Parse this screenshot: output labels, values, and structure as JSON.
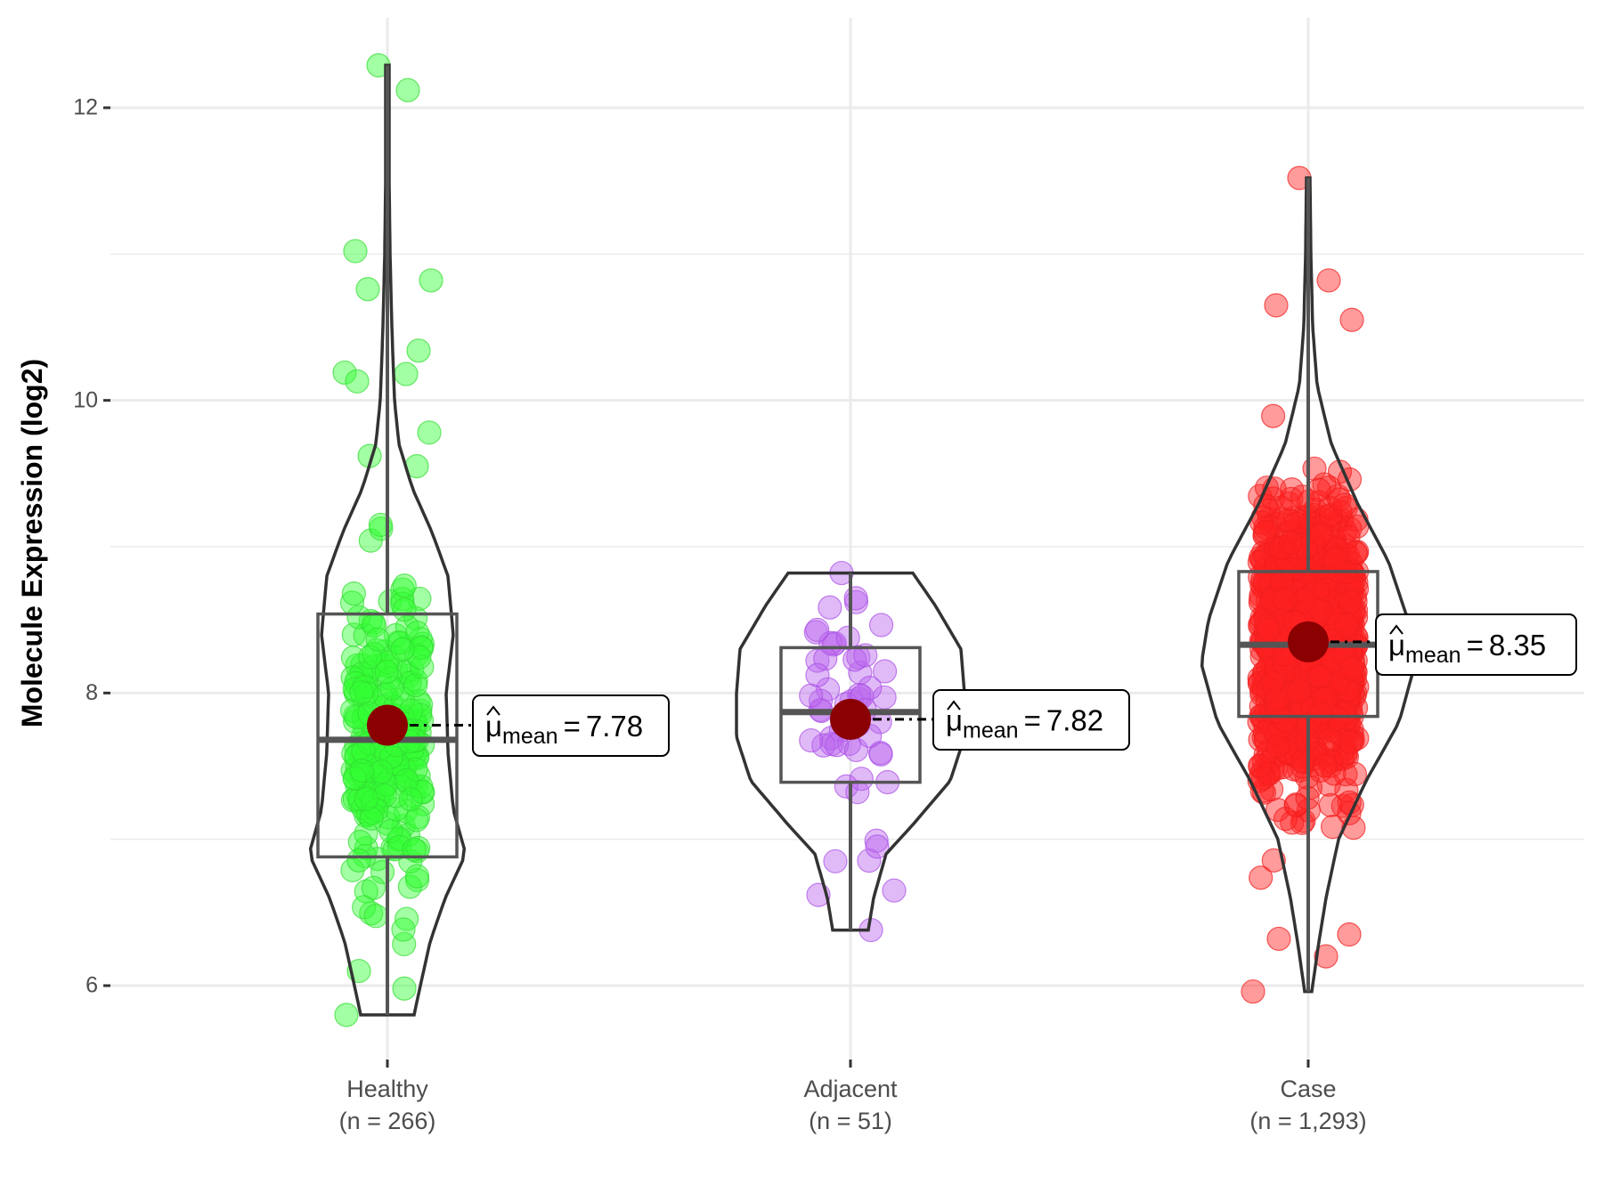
{
  "chart_data": {
    "type": "violin",
    "title": "",
    "xlabel": "",
    "ylabel": "Molecule Expression (log2)",
    "ylim": [
      5.45,
      12.6
    ],
    "yticks": [
      6,
      8,
      10,
      12
    ],
    "ytick_labels": [
      "6",
      "8",
      "10",
      "12"
    ],
    "minor_yticks": [
      7,
      9,
      11
    ],
    "grid": true,
    "legend": "none",
    "groups": [
      {
        "name": "Healthy",
        "n_label": "(n = 266)",
        "n": 266,
        "color": "#33ff33",
        "violin_min": 5.8,
        "violin_max": 12.29,
        "box": {
          "q1": 6.88,
          "median": 7.68,
          "q3": 8.54,
          "whisker_low": 5.8,
          "whisker_high": 12.29
        },
        "mean": 7.78,
        "mean_label": {
          "prefix": "μ",
          "sub": "mean",
          "eq": "=",
          "value": "7.78"
        },
        "outliers": [
          12.29,
          12.12,
          11.02,
          10.82,
          10.76,
          10.34,
          10.19,
          10.18,
          10.13,
          9.78,
          9.62,
          9.55,
          5.8,
          5.98,
          6.1
        ]
      },
      {
        "name": "Adjacent",
        "n_label": "(n = 51)",
        "n": 51,
        "color": "#bb66ee",
        "violin_min": 6.38,
        "violin_max": 8.82,
        "box": {
          "q1": 7.39,
          "median": 7.87,
          "q3": 8.31,
          "whisker_low": 6.38,
          "whisker_high": 8.82
        },
        "mean": 7.82,
        "mean_label": {
          "prefix": "μ",
          "sub": "mean",
          "eq": "=",
          "value": "7.82"
        },
        "outliers": [
          8.82,
          6.38,
          6.62,
          6.65,
          6.85,
          6.95
        ]
      },
      {
        "name": "Case",
        "n_label": "(n = 1,293)",
        "n": 1293,
        "color": "#ff2222",
        "violin_min": 5.96,
        "violin_max": 11.52,
        "box": {
          "q1": 7.84,
          "median": 8.33,
          "q3": 8.83,
          "whisker_low": 5.96,
          "whisker_high": 11.52
        },
        "mean": 8.35,
        "mean_label": {
          "prefix": "μ",
          "sub": "mean",
          "eq": "=",
          "value": "8.35"
        },
        "outliers": [
          11.52,
          10.82,
          10.65,
          10.55,
          5.96,
          6.2,
          6.32,
          6.35
        ]
      }
    ]
  }
}
